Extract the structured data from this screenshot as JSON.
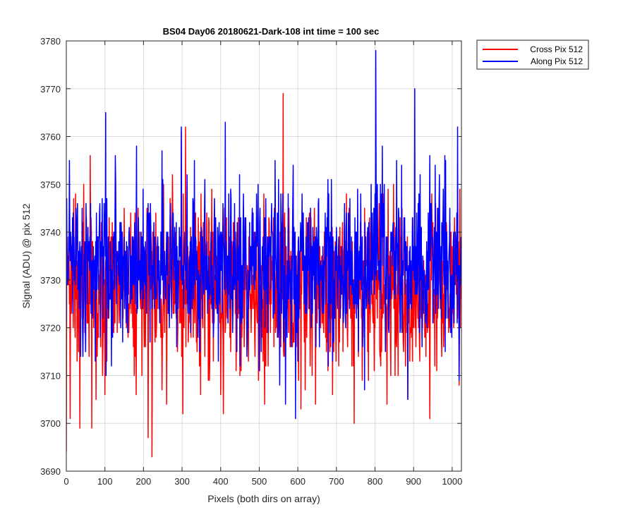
{
  "chart_data": {
    "type": "line",
    "title": "BS04 Day06 20180621-Dark-108 int time = 100 sec",
    "xlabel": "Pixels (both dirs on array)",
    "ylabel": "Signal (ADU) @ pix 512",
    "xlim": [
      0,
      1024
    ],
    "ylim": [
      3690,
      3780
    ],
    "xticks": [
      0,
      100,
      200,
      300,
      400,
      500,
      600,
      700,
      800,
      900,
      1000
    ],
    "yticks": [
      3690,
      3700,
      3710,
      3720,
      3730,
      3740,
      3750,
      3760,
      3770,
      3780
    ],
    "grid": true,
    "legend_location": "outside-top-right",
    "series": [
      {
        "name": "Cross Pix 512",
        "color": "#ff0000",
        "n_points": 1024,
        "mean": 3728,
        "spread": 11,
        "seed": 7,
        "anchors": [
          [
            0,
            3694
          ],
          [
            4,
            3735
          ],
          [
            10,
            3701
          ],
          [
            24,
            3748
          ],
          [
            35,
            3699
          ],
          [
            62,
            3756
          ],
          [
            66,
            3699
          ],
          [
            100,
            3706
          ],
          [
            205,
            3716
          ],
          [
            212,
            3697
          ],
          [
            222,
            3693
          ],
          [
            260,
            3704
          ],
          [
            302,
            3702
          ],
          [
            400,
            3706
          ],
          [
            500,
            3718
          ],
          [
            514,
            3704
          ],
          [
            562,
            3769
          ],
          [
            608,
            3703
          ],
          [
            690,
            3706
          ],
          [
            746,
            3700
          ],
          [
            885,
            3705
          ],
          [
            1018,
            3708
          ]
        ]
      },
      {
        "name": "Along Pix 512",
        "color": "#0000ff",
        "n_points": 1024,
        "mean": 3733,
        "spread": 10,
        "seed": 13,
        "anchors": [
          [
            8,
            3755
          ],
          [
            102,
            3765
          ],
          [
            117,
            3712
          ],
          [
            298,
            3762
          ],
          [
            412,
            3763
          ],
          [
            568,
            3704
          ],
          [
            594,
            3701
          ],
          [
            773,
            3707
          ],
          [
            802,
            3778
          ],
          [
            903,
            3770
          ],
          [
            942,
            3756
          ],
          [
            1014,
            3762
          ],
          [
            1018,
            3709
          ]
        ]
      }
    ]
  }
}
